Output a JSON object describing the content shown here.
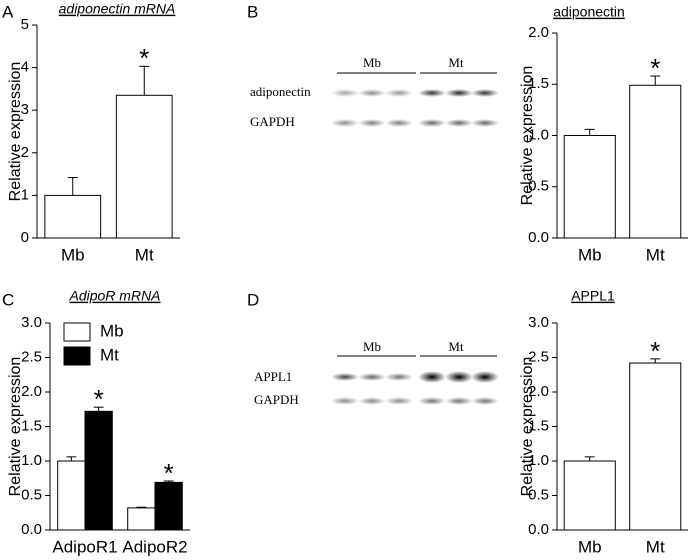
{
  "panel_labels": [
    "A",
    "B",
    "C",
    "D"
  ],
  "blots": [
    {
      "groups": [
        "Mb",
        "Mt"
      ],
      "rows": [
        "adiponectin",
        "GAPDH"
      ]
    },
    {
      "groups": [
        "Mb",
        "Mt"
      ],
      "rows": [
        "APPL1",
        "GAPDH"
      ]
    }
  ],
  "chart_data": [
    {
      "type": "bar",
      "title": "adiponectin mRNA",
      "y_label": "Relative expression",
      "categories": [
        "Mb",
        "Mt"
      ],
      "values": [
        1.0,
        3.35
      ],
      "errors": [
        0.42,
        0.68
      ],
      "significance": [
        null,
        "*"
      ],
      "color": "#ffffff",
      "ylim": [
        0,
        5
      ],
      "yticks": [
        0,
        1,
        2,
        3,
        4,
        5
      ]
    },
    {
      "type": "bar",
      "title": "adiponectin",
      "y_label": "Relative expression",
      "categories": [
        "Mb",
        "Mt"
      ],
      "values": [
        1.0,
        1.49
      ],
      "errors": [
        0.06,
        0.09
      ],
      "significance": [
        null,
        "*"
      ],
      "color": "#ffffff",
      "ylim": [
        0,
        2
      ],
      "yticks": [
        {
          "value": 0,
          "label": "0.0"
        },
        0.5,
        {
          "value": 1,
          "label": "1.0"
        },
        1.5,
        {
          "value": 2,
          "label": "2.0"
        }
      ]
    },
    {
      "type": "grouped_bar",
      "title": "AdipoR mRNA",
      "y_label": "Relative expression",
      "categories": [
        "AdipoR1",
        "AdipoR2"
      ],
      "legend": "upper left",
      "series": [
        {
          "name": "Mb",
          "color": "#ffffff",
          "values": [
            1.0,
            0.32
          ],
          "errors": [
            0.06,
            0.01
          ],
          "significance": [
            null,
            null
          ]
        },
        {
          "name": "Mt",
          "color": "#000000",
          "values": [
            1.72,
            0.69
          ],
          "errors": [
            0.06,
            0.02
          ],
          "significance": [
            "*",
            "*"
          ]
        }
      ],
      "ylim": [
        0,
        3
      ],
      "yticks": [
        {
          "value": 0,
          "label": "0.0"
        },
        0.5,
        {
          "value": 1,
          "label": "1.0"
        },
        1.5,
        {
          "value": 2,
          "label": "2.0"
        },
        2.5,
        {
          "value": 3,
          "label": "3.0"
        }
      ]
    },
    {
      "type": "bar",
      "title": "APPL1",
      "y_label": "Relative expression",
      "categories": [
        "Mb",
        "Mt"
      ],
      "values": [
        1.0,
        2.42
      ],
      "errors": [
        0.06,
        0.06
      ],
      "significance": [
        null,
        "*"
      ],
      "color": "#ffffff",
      "ylim": [
        0,
        3
      ],
      "yticks": [
        {
          "value": 0,
          "label": "0.0"
        },
        0.5,
        {
          "value": 1,
          "label": "1.0"
        },
        1.5,
        {
          "value": 2,
          "label": "2.0"
        },
        2.5,
        {
          "value": 3,
          "label": "3.0"
        }
      ]
    }
  ]
}
